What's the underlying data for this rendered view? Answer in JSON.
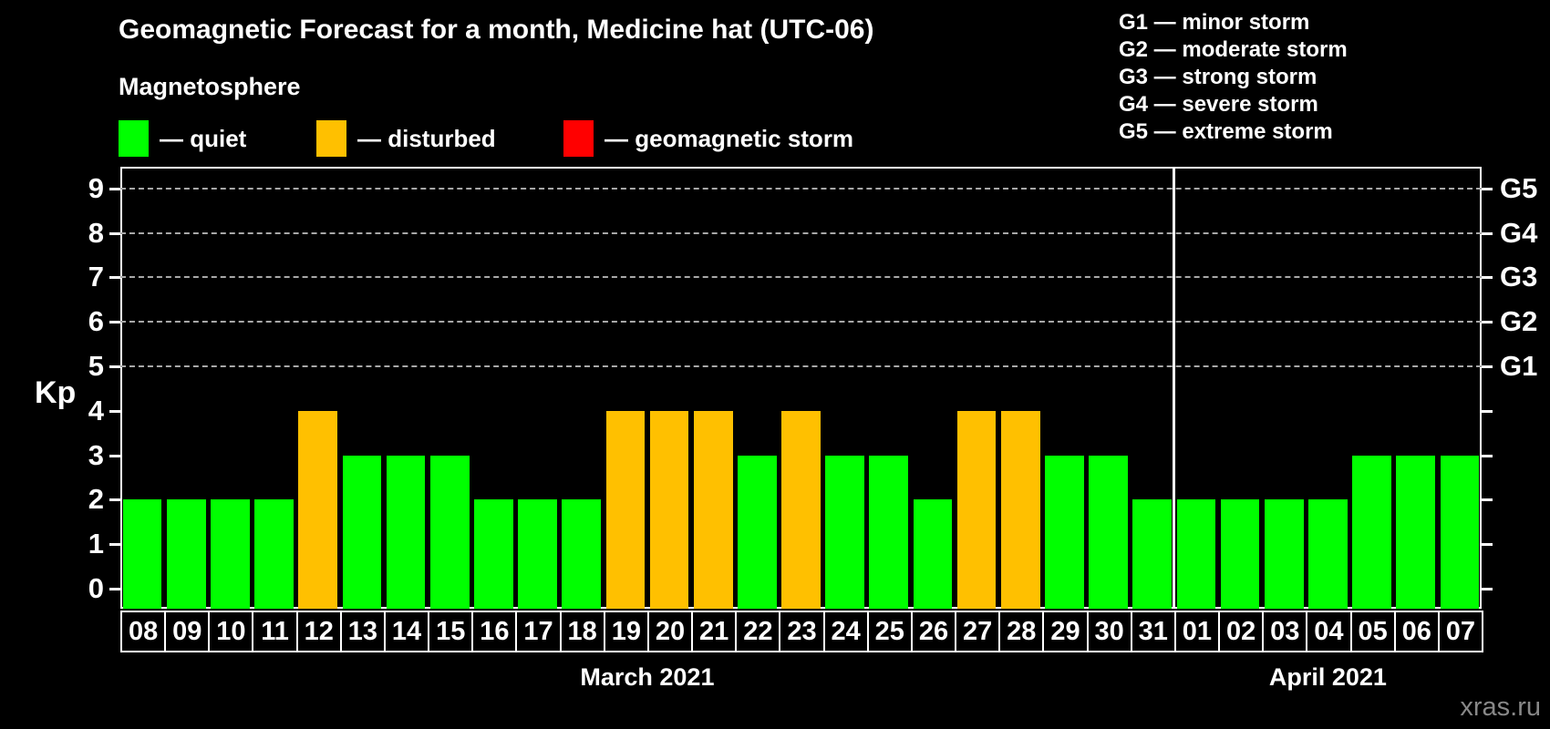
{
  "title": "Geomagnetic Forecast for a month, Medicine hat (UTC-06)",
  "subtitle": "Magnetosphere",
  "legend": {
    "items": [
      {
        "key": "quiet",
        "label": "— quiet",
        "color": "#00ff00"
      },
      {
        "key": "disturbed",
        "label": "— disturbed",
        "color": "#ffc000"
      },
      {
        "key": "storm",
        "label": "— geomagnetic storm",
        "color": "#ff0000"
      }
    ]
  },
  "storm_scale_legend": [
    "G1 — minor storm",
    "G2 — moderate storm",
    "G3 — strong storm",
    "G4 — severe storm",
    "G5 — extreme storm"
  ],
  "watermark": "xras.ru",
  "chart_data": {
    "type": "bar",
    "title": "Geomagnetic Forecast for a month, Medicine hat (UTC-06)",
    "ylabel": "Kp",
    "ylim": [
      0,
      9
    ],
    "y_ticks": [
      0,
      1,
      2,
      3,
      4,
      5,
      6,
      7,
      8,
      9
    ],
    "right_axis_labels": [
      {
        "text": "G1",
        "value": 5
      },
      {
        "text": "G2",
        "value": 6
      },
      {
        "text": "G3",
        "value": 7
      },
      {
        "text": "G4",
        "value": 8
      },
      {
        "text": "G5",
        "value": 9
      }
    ],
    "grid": "dashed horizontal lines at Kp 5-9",
    "legend_position": "top",
    "categories": [
      "08",
      "09",
      "10",
      "11",
      "12",
      "13",
      "14",
      "15",
      "16",
      "17",
      "18",
      "19",
      "20",
      "21",
      "22",
      "23",
      "24",
      "25",
      "26",
      "27",
      "28",
      "29",
      "30",
      "31",
      "01",
      "02",
      "03",
      "04",
      "05",
      "06",
      "07"
    ],
    "values": [
      2,
      2,
      2,
      2,
      4,
      3,
      3,
      3,
      2,
      2,
      2,
      4,
      4,
      4,
      3,
      4,
      3,
      3,
      2,
      4,
      4,
      3,
      3,
      2,
      2,
      2,
      2,
      2,
      3,
      3,
      3
    ],
    "statuses": [
      "quiet",
      "quiet",
      "quiet",
      "quiet",
      "disturbed",
      "quiet",
      "quiet",
      "quiet",
      "quiet",
      "quiet",
      "quiet",
      "disturbed",
      "disturbed",
      "disturbed",
      "quiet",
      "disturbed",
      "quiet",
      "quiet",
      "quiet",
      "disturbed",
      "disturbed",
      "quiet",
      "quiet",
      "quiet",
      "quiet",
      "quiet",
      "quiet",
      "quiet",
      "quiet",
      "quiet",
      "quiet"
    ],
    "months": [
      {
        "label": "March 2021",
        "days": 24
      },
      {
        "label": "April 2021",
        "days": 7
      }
    ],
    "colors": {
      "quiet": "#00ff00",
      "disturbed": "#ffc000",
      "storm": "#ff0000"
    }
  }
}
